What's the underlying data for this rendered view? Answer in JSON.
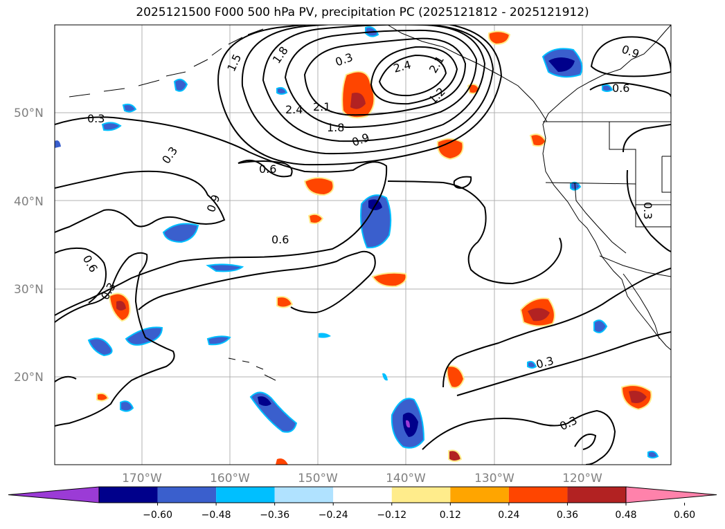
{
  "title": "2025121500 F000 500 hPa PV, precipitation PC (2025121812 - 2025121912)",
  "lat_labels": [
    "50°N",
    "40°N",
    "30°N",
    "20°N"
  ],
  "lon_labels": [
    "170°W",
    "160°W",
    "150°W",
    "140°W",
    "130°W",
    "120°W"
  ],
  "colorbar": {
    "ticks": [
      "−0.60",
      "−0.48",
      "−0.36",
      "−0.24",
      "−0.12",
      "0.12",
      "0.24",
      "0.36",
      "0.48",
      "0.60"
    ],
    "colors": [
      "#9b3bd6",
      "#00008b",
      "#3a5fcd",
      "#00bfff",
      "#b0e2ff",
      "#ffffff",
      "#ffec8b",
      "#ffa500",
      "#ff4500",
      "#b22222",
      "#ff82ab"
    ]
  },
  "contour_labels": [
    "0.3",
    "0.3",
    "0.6",
    "0.9",
    "0.6",
    "0.6",
    "0.3",
    "2.4",
    "2.1",
    "1.8",
    "0.9",
    "0.3",
    "2.4",
    "2.1",
    "1.2",
    "1.5",
    "1.8",
    "0.9",
    "0.6",
    "0.3",
    "0.3",
    "0.3"
  ],
  "colors": {
    "grid": "#b0b0b0",
    "contour": "#000000",
    "coast": "#000000"
  }
}
